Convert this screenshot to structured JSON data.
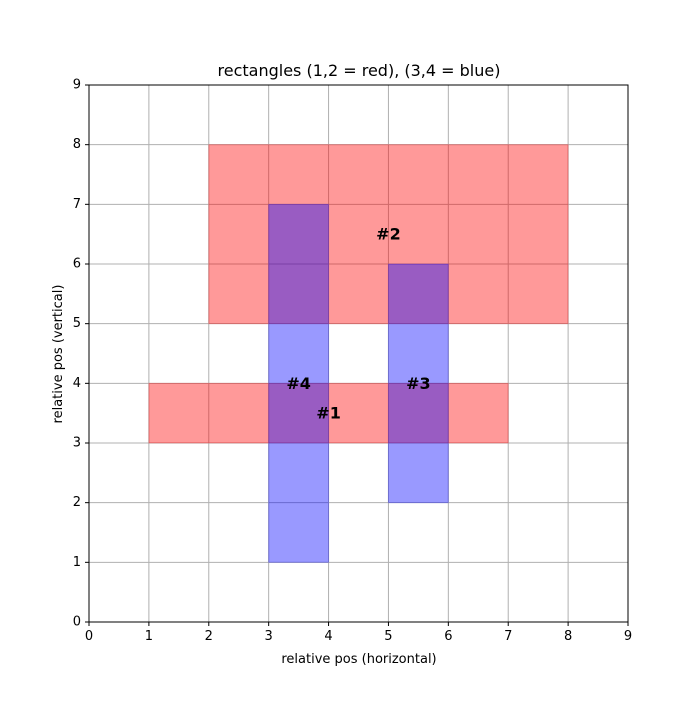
{
  "chart_data": {
    "type": "rectangles",
    "title": "rectangles (1,2 = red), (3,4 = blue)",
    "xlabel": "relative pos (horizontal)",
    "ylabel": "relative pos (vertical)",
    "xlim": [
      0,
      9
    ],
    "ylim": [
      0,
      9
    ],
    "xticks": [
      0,
      1,
      2,
      3,
      4,
      5,
      6,
      7,
      8,
      9
    ],
    "yticks": [
      0,
      1,
      2,
      3,
      4,
      5,
      6,
      7,
      8,
      9
    ],
    "grid": true,
    "colors": {
      "red": "#ff0000",
      "blue": "#0000ff",
      "grid": "#b0b0b0"
    },
    "rectangles": [
      {
        "label": "#1",
        "color": "red",
        "x": 1,
        "y": 3,
        "width": 6,
        "height": 1
      },
      {
        "label": "#2",
        "color": "red",
        "x": 2,
        "y": 5,
        "width": 6,
        "height": 3
      },
      {
        "label": "#3",
        "color": "blue",
        "x": 5,
        "y": 2,
        "width": 1,
        "height": 4
      },
      {
        "label": "#4",
        "color": "blue",
        "x": 3,
        "y": 1,
        "width": 1,
        "height": 6
      }
    ]
  }
}
